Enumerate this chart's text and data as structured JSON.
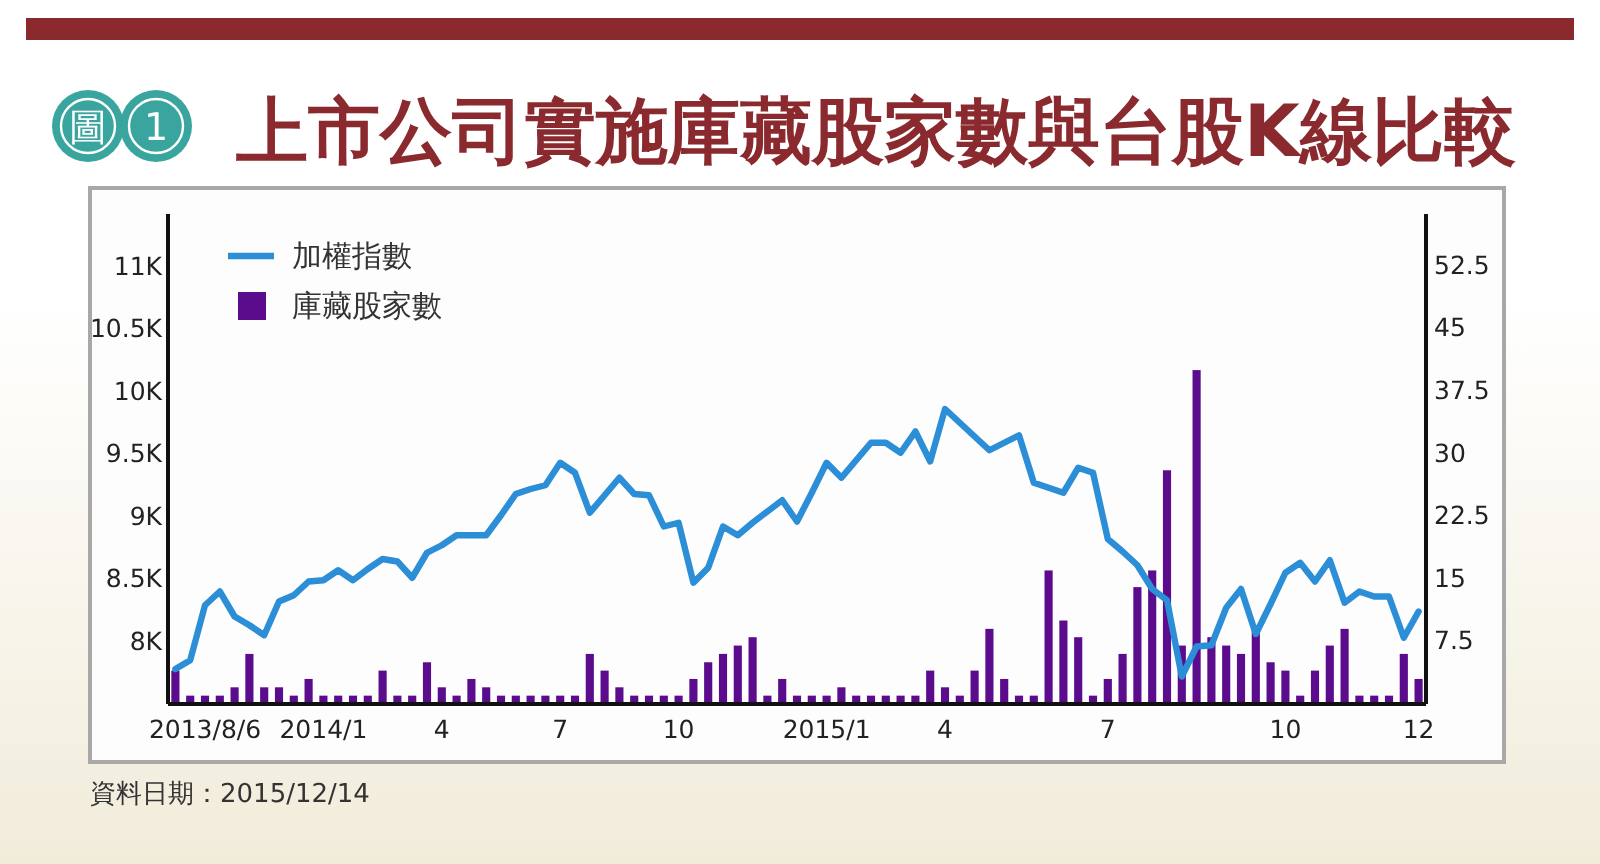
{
  "chart_data": {
    "type": "bar",
    "title": "上市公司實施庫藏股家數與台股K線比較",
    "annotations": [
      "圖 1",
      "資料日期：2015/12/14"
    ],
    "categories": [
      null,
      null,
      "2013/8/6",
      null,
      null,
      null,
      null,
      null,
      null,
      null,
      "2014/1",
      null,
      null,
      null,
      null,
      null,
      null,
      null,
      "4",
      null,
      null,
      null,
      null,
      null,
      null,
      null,
      "7",
      null,
      null,
      null,
      null,
      null,
      null,
      null,
      "10",
      null,
      null,
      null,
      null,
      null,
      null,
      null,
      null,
      null,
      "2015/1",
      null,
      null,
      null,
      null,
      null,
      null,
      null,
      "4",
      null,
      null,
      null,
      null,
      null,
      null,
      null,
      null,
      null,
      null,
      "7",
      null,
      null,
      null,
      null,
      null,
      null,
      null,
      null,
      null,
      null,
      null,
      "10",
      null,
      null,
      null,
      null,
      null,
      null,
      null,
      null,
      "12"
    ],
    "series": [
      {
        "name": "加權指數",
        "type": "line",
        "color": "#2b8ed6",
        "values": [
          7780,
          7850,
          8290,
          8400,
          8200,
          8130,
          8050,
          8320,
          8370,
          8480,
          8490,
          8570,
          8490,
          8580,
          8660,
          8640,
          8510,
          8710,
          8770,
          8850,
          8850,
          8850,
          9010,
          9180,
          9220,
          9250,
          9430,
          9350,
          9030,
          9170,
          9310,
          9180,
          9170,
          8920,
          8950,
          8470,
          8590,
          8920,
          8850,
          8950,
          9040,
          9130,
          8960,
          9190,
          9430,
          9310,
          9450,
          9590,
          9590,
          9510,
          9680,
          9440,
          9860,
          9750,
          9640,
          9530,
          9590,
          9650,
          9270,
          9230,
          9190,
          9390,
          9350,
          8820,
          8720,
          8610,
          8420,
          8330,
          7720,
          7960,
          7970,
          8270,
          8420,
          8060,
          8300,
          8550,
          8630,
          8480,
          8650,
          8310,
          8400,
          8360,
          8360,
          8030,
          8240
        ]
      },
      {
        "name": "庫藏股家數",
        "axis": "y2",
        "color": "#5b0c8c",
        "values": [
          4,
          1,
          1,
          1,
          2,
          6,
          2,
          2,
          1,
          3,
          1,
          1,
          1,
          1,
          4,
          1,
          1,
          5,
          2,
          1,
          3,
          2,
          1,
          1,
          1,
          1,
          1,
          1,
          6,
          4,
          2,
          1,
          1,
          1,
          1,
          3,
          5,
          6,
          7,
          8,
          1,
          3,
          1,
          1,
          1,
          2,
          1,
          1,
          1,
          1,
          1,
          4,
          2,
          1,
          4,
          9,
          3,
          1,
          1,
          16,
          10,
          8,
          1,
          3,
          6,
          14,
          16,
          28,
          7,
          40,
          8,
          7,
          6,
          9,
          5,
          4,
          1,
          4,
          7,
          9,
          1,
          1,
          1,
          6,
          3
        ]
      }
    ],
    "ylim": [
      7500,
      11420
    ],
    "yticks": [
      {
        "value": 8000,
        "label": "8K"
      },
      {
        "value": 8500,
        "label": "8.5K"
      },
      {
        "value": 9000,
        "label": "9K"
      },
      {
        "value": 9500,
        "label": "9.5K"
      },
      {
        "value": 10000,
        "label": "10K"
      },
      {
        "value": 10500,
        "label": "10.5K"
      },
      {
        "value": 11000,
        "label": "11K"
      }
    ],
    "y2lim": [
      0,
      58.7
    ],
    "y2ticks": [
      7.5,
      15,
      22.5,
      30,
      37.5,
      45,
      52.5
    ],
    "legend": "top left"
  }
}
